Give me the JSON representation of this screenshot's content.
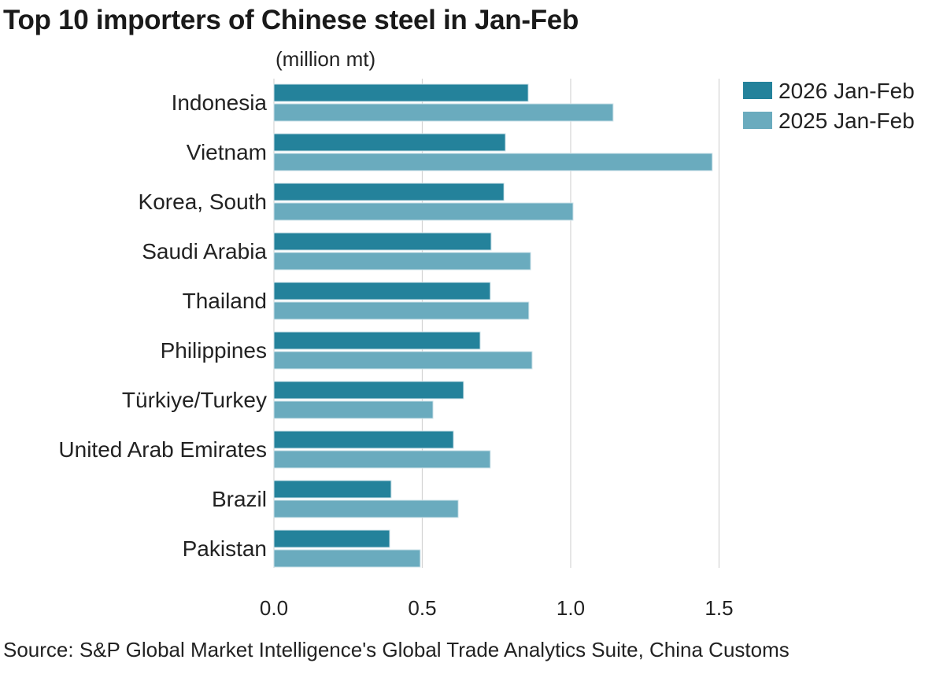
{
  "chart_data": {
    "type": "bar",
    "orientation": "horizontal",
    "title": "Top 10 importers of Chinese steel in Jan-Feb",
    "subtitle": "(million mt)",
    "categories": [
      "Indonesia",
      "Vietnam",
      "Korea, South",
      "Saudi Arabia",
      "Thailand",
      "Philippines",
      "Türkiye/Turkey",
      "United Arab Emirates",
      "Brazil",
      "Pakistan"
    ],
    "series": [
      {
        "name": "2026 Jan-Feb",
        "color": "#24829b",
        "values": [
          0.857,
          0.78,
          0.775,
          0.732,
          0.729,
          0.695,
          0.639,
          0.605,
          0.395,
          0.39
        ]
      },
      {
        "name": "2025 Jan-Feb",
        "color": "#6aabbe",
        "values": [
          1.143,
          1.477,
          1.008,
          0.865,
          0.859,
          0.87,
          0.536,
          0.729,
          0.621,
          0.493
        ]
      }
    ],
    "xlim": [
      0,
      1.5
    ],
    "xticks": [
      "0.0",
      "0.5",
      "1.0",
      "1.5"
    ],
    "grid": true,
    "legend": "top-right",
    "source": "Source: S&P Global Market Intelligence's Global Trade Analytics Suite, China Customs"
  }
}
